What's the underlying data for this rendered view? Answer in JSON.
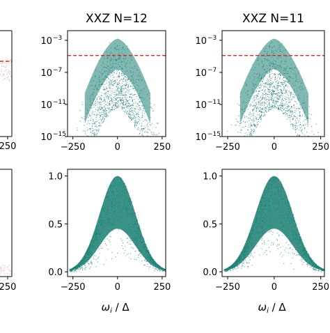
{
  "colors": {
    "cloud": "#1a7f72",
    "cloud_edge": "#2f55a8",
    "reference": "#d62728",
    "pink": "#e8a0b0",
    "axis": "#000000"
  },
  "chart_data": [
    {
      "id": "top-left-partial",
      "type": "scatter",
      "title": "",
      "xlabel": "",
      "ylabel": "",
      "x_tick_labels": [
        "250"
      ],
      "y_tick_labels": [],
      "reference_line_visible": true,
      "point_color": "pink",
      "partially_visible": true
    },
    {
      "id": "xxz-n12-top",
      "type": "scatter",
      "title": "XXZ N=12",
      "xlabel": "",
      "ylabel": "",
      "xlim": [
        -280,
        270
      ],
      "ylim_log10": [
        -15,
        -1.8
      ],
      "y_scale": "log",
      "x_ticks": [
        -250,
        0,
        250
      ],
      "x_tick_labels": [
        "−250",
        "0",
        "250"
      ],
      "y_ticks_log10": [
        -3,
        -7,
        -11,
        -15
      ],
      "y_tick_labels": [
        "10",
        "10",
        "10",
        "10"
      ],
      "y_tick_exponents": [
        "−3",
        "−7",
        "−11",
        "−15"
      ],
      "reference_line_log10": -4.9,
      "reference_style": "dashed",
      "envelope": {
        "peak_x": 0,
        "peak_log10": -2.4,
        "half_width": 255
      }
    },
    {
      "id": "xxz-n11-top",
      "type": "scatter",
      "title": "XXZ N=11",
      "xlabel": "",
      "ylabel": "",
      "xlim": [
        -280,
        270
      ],
      "ylim_log10": [
        -15,
        -1.8
      ],
      "y_scale": "log",
      "x_ticks": [
        -250,
        0,
        250
      ],
      "x_tick_labels": [
        "−250",
        "0",
        "250"
      ],
      "y_ticks_log10": [
        -3,
        -7,
        -11,
        -15
      ],
      "y_tick_labels": [
        "10",
        "10",
        "10",
        "10"
      ],
      "y_tick_exponents": [
        "−3",
        "−7",
        "−11",
        "−15"
      ],
      "reference_line_log10": -4.9,
      "reference_style": "dashed",
      "envelope": {
        "peak_x": 0,
        "peak_log10": -2.4,
        "half_width": 255
      }
    },
    {
      "id": "bottom-left-partial",
      "type": "scatter",
      "title": "",
      "xlabel": "",
      "ylabel": "",
      "x_tick_labels": [
        "250"
      ],
      "y_tick_labels": [],
      "point_color": "pink",
      "partially_visible": true
    },
    {
      "id": "xxz-n12-bottom",
      "type": "area",
      "title": "",
      "xlabel": "ω_i / Δ",
      "xlabel_main": "ω",
      "xlabel_sub": "i",
      "xlabel_rest": " / Δ",
      "ylabel": "",
      "xlim": [
        -280,
        270
      ],
      "ylim": [
        -0.05,
        1.07
      ],
      "x_ticks": [
        -250,
        0,
        250
      ],
      "x_tick_labels": [
        "−250",
        "0",
        "250"
      ],
      "y_ticks": [
        0.0,
        0.5,
        1.0
      ],
      "y_tick_labels": [
        "0.0",
        "0.5",
        "1.0"
      ],
      "gaussian": {
        "center": 0,
        "peak": 1.0,
        "sigma": 100
      }
    },
    {
      "id": "xxz-n11-bottom",
      "type": "area",
      "title": "",
      "xlabel": "ω_i / Δ",
      "xlabel_main": "ω",
      "xlabel_sub": "i",
      "xlabel_rest": " / Δ",
      "ylabel": "",
      "xlim": [
        -280,
        270
      ],
      "ylim": [
        -0.05,
        1.07
      ],
      "x_ticks": [
        -250,
        0,
        250
      ],
      "x_tick_labels": [
        "−250",
        "0",
        "250"
      ],
      "y_ticks": [
        0.0,
        0.5,
        1.0
      ],
      "y_tick_labels": [
        "0.0",
        "0.5",
        "1.0"
      ],
      "gaussian": {
        "center": 0,
        "peak": 1.0,
        "sigma": 100
      }
    }
  ]
}
